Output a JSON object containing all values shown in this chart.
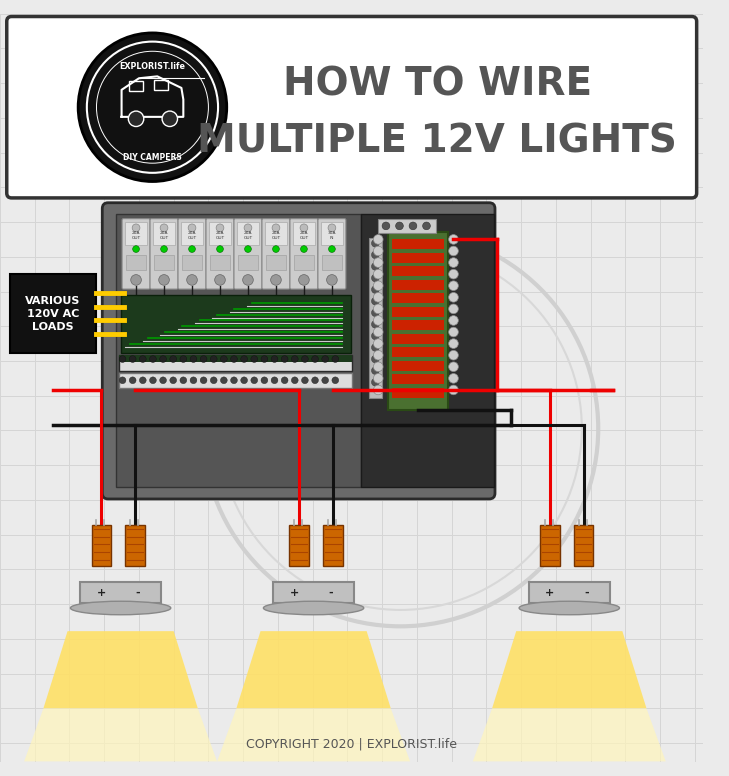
{
  "title_line1": "HOW TO WIRE",
  "title_line2": "MULTIPLE 12V LIGHTS",
  "copyright": "COPYRIGHT 2020 | EXPLORIST.life",
  "bg_color": "#ebebeb",
  "grid_color": "#d5d5d5",
  "wire_red": "#ee0000",
  "wire_black": "#111111",
  "wire_green": "#009900",
  "wire_white": "#cccccc",
  "wire_yellow": "#ffcc00",
  "bus_green": "#4a7030",
  "bus_red": "#cc2200",
  "connector_color": "#cc6600",
  "panel_gray": "#6a6a6a",
  "panel_dark": "#2d2d2d",
  "panel_mid": "#555555",
  "breaker_color": "#cccccc",
  "terminal_color": "#dddddd",
  "label_box": "#111111",
  "label_text": "#ffffff",
  "title_box": "#ffffff",
  "title_text": "#555555",
  "logo_bg": "#111111"
}
